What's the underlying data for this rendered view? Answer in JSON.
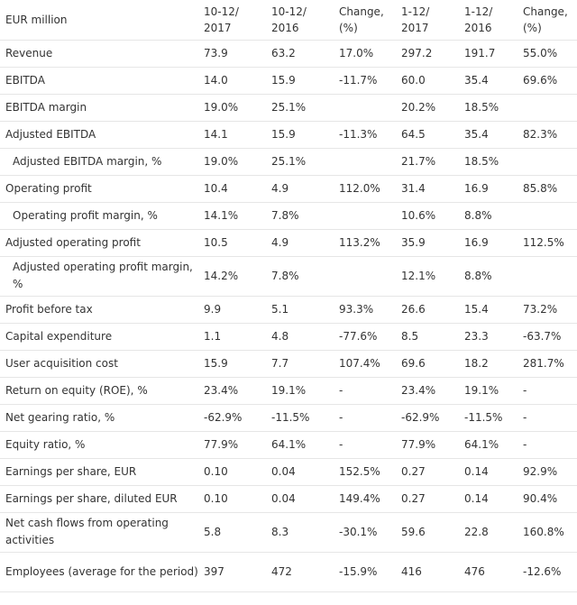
{
  "table": {
    "headers": [
      "EUR million",
      "10-12/ 2017",
      "10-12/ 2016",
      "Change, (%)",
      "1-12/ 2017",
      "1-12/ 2016",
      "Change, (%)"
    ],
    "rows": [
      {
        "label": "Revenue",
        "values": [
          "73.9",
          "63.2",
          "17.0%",
          "297.2",
          "191.7",
          "55.0%"
        ]
      },
      {
        "label": "EBITDA",
        "values": [
          "14.0",
          "15.9",
          "-11.7%",
          "60.0",
          "35.4",
          "69.6%"
        ]
      },
      {
        "label": "EBITDA margin",
        "values": [
          "19.0%",
          "25.1%",
          "",
          "20.2%",
          "18.5%",
          ""
        ]
      },
      {
        "label": "Adjusted EBITDA",
        "values": [
          "14.1",
          "15.9",
          "-11.3%",
          "64.5",
          "35.4",
          "82.3%"
        ]
      },
      {
        "label": "Adjusted EBITDA margin, %",
        "values": [
          "19.0%",
          "25.1%",
          "",
          "21.7%",
          "18.5%",
          ""
        ]
      },
      {
        "label": "Operating profit",
        "values": [
          "10.4",
          "4.9",
          "112.0%",
          "31.4",
          "16.9",
          "85.8%"
        ]
      },
      {
        "label": "Operating profit margin, %",
        "values": [
          "14.1%",
          "7.8%",
          "",
          "10.6%",
          "8.8%",
          ""
        ]
      },
      {
        "label": "Adjusted operating profit",
        "values": [
          "10.5",
          "4.9",
          "113.2%",
          "35.9",
          "16.9",
          "112.5%"
        ]
      },
      {
        "label": "Adjusted operating profit margin, %",
        "values": [
          "14.2%",
          "7.8%",
          "",
          "12.1%",
          "8.8%",
          ""
        ]
      },
      {
        "label": "Profit before tax",
        "values": [
          "9.9",
          "5.1",
          "93.3%",
          "26.6",
          "15.4",
          "73.2%"
        ]
      },
      {
        "label": "Capital expenditure",
        "values": [
          "1.1",
          "4.8",
          "-77.6%",
          "8.5",
          "23.3",
          "-63.7%"
        ]
      },
      {
        "label": "User acquisition cost",
        "values": [
          "15.9",
          "7.7",
          "107.4%",
          "69.6",
          "18.2",
          "281.7%"
        ]
      },
      {
        "label": "Return on equity (ROE), %",
        "values": [
          "23.4%",
          "19.1%",
          "-",
          "23.4%",
          "19.1%",
          "-"
        ]
      },
      {
        "label": "Net gearing ratio, %",
        "values": [
          "-62.9%",
          "-11.5%",
          "-",
          "-62.9%",
          "-11.5%",
          "-"
        ]
      },
      {
        "label": "Equity ratio, %",
        "values": [
          "77.9%",
          "64.1%",
          "-",
          "77.9%",
          "64.1%",
          "-"
        ]
      },
      {
        "label": "Earnings per share, EUR",
        "values": [
          "0.10",
          "0.04",
          "152.5%",
          "0.27",
          "0.14",
          "92.9%"
        ]
      },
      {
        "label": "Earnings per share, diluted EUR",
        "values": [
          "0.10",
          "0.04",
          "149.4%",
          "0.27",
          "0.14",
          "90.4%"
        ]
      },
      {
        "label": "Net cash flows from operating activities",
        "values": [
          "5.8",
          "8.3",
          "-30.1%",
          "59.6",
          "22.8",
          "160.8%"
        ]
      },
      {
        "label": "Employees (average for the period)",
        "values": [
          "397",
          "472",
          "-15.9%",
          "416",
          "476",
          "-12.6%"
        ]
      }
    ]
  }
}
